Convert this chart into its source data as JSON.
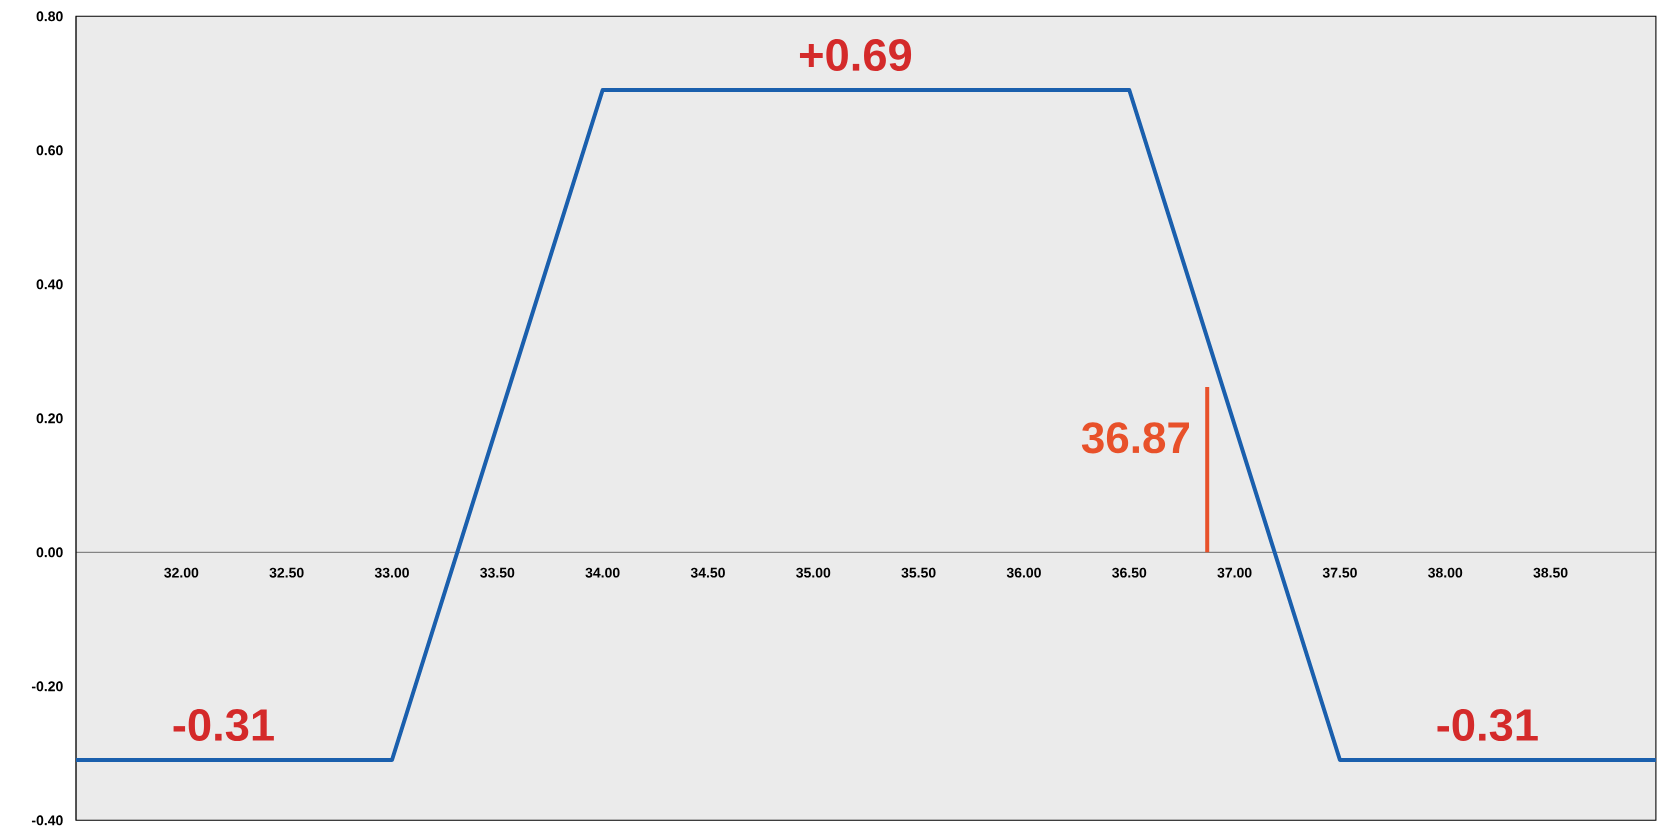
{
  "chart_data": {
    "type": "line",
    "x": [
      31.5,
      33,
      34,
      36.5,
      37.5,
      39
    ],
    "series": [
      {
        "color": "#1a5fad",
        "values": [
          -0.31,
          -0.31,
          0.69,
          0.69,
          -0.31,
          -0.31
        ]
      }
    ],
    "xlim": [
      31.5,
      39
    ],
    "ylim": [
      -0.4,
      0.8
    ],
    "xticks": [
      {
        "value": 32,
        "label": "32.00"
      },
      {
        "value": 32.5,
        "label": "32.50"
      },
      {
        "value": 33,
        "label": "33.00"
      },
      {
        "value": 33.5,
        "label": "33.50"
      },
      {
        "value": 34,
        "label": "34.00"
      },
      {
        "value": 34.5,
        "label": "34.50"
      },
      {
        "value": 35,
        "label": "35.00"
      },
      {
        "value": 35.5,
        "label": "35.50"
      },
      {
        "value": 36,
        "label": "36.00"
      },
      {
        "value": 36.5,
        "label": "36.50"
      },
      {
        "value": 37,
        "label": "37.00"
      },
      {
        "value": 37.5,
        "label": "37.50"
      },
      {
        "value": 38,
        "label": "38.00"
      },
      {
        "value": 38.5,
        "label": "38.50"
      }
    ],
    "yticks": [
      {
        "value": -0.4,
        "label": "-0.40"
      },
      {
        "value": -0.2,
        "label": "-0.20"
      },
      {
        "value": 0,
        "label": "0.00"
      },
      {
        "value": 0.2,
        "label": "0.20"
      },
      {
        "value": 0.4,
        "label": "0.40"
      },
      {
        "value": 0.6,
        "label": "0.60"
      },
      {
        "value": 0.8,
        "label": "0.80"
      }
    ],
    "ref_lines": [
      {
        "axis": "x",
        "value": 36.87,
        "label": "36.87",
        "color": "#e8512a"
      }
    ],
    "annotations": [
      {
        "text": "+0.69",
        "x": 35.2,
        "y": 0.69
      },
      {
        "text": "-0.31",
        "x": 32.2,
        "y": -0.31
      },
      {
        "text": "-0.31",
        "x": 38.2,
        "y": -0.31
      }
    ]
  }
}
